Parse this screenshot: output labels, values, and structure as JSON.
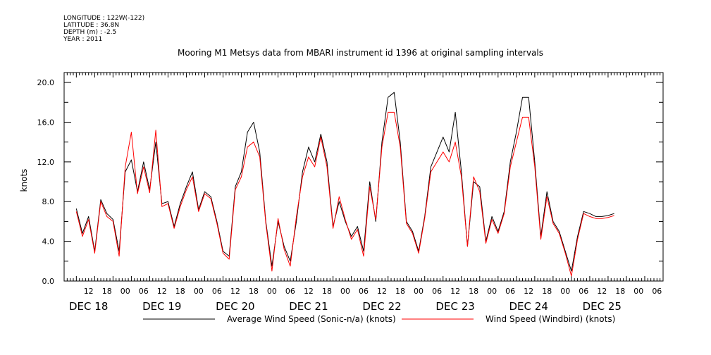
{
  "header": {
    "longitude": "LONGITUDE : 122W(-122)",
    "latitude": "LATITUDE : 36.8N",
    "depth": "DEPTH (m) : -2.5",
    "year": "YEAR : 2011"
  },
  "chart_data": {
    "type": "line",
    "title": "Mooring M1 Metsys data from MBARI instrument id 1396 at original sampling intervals",
    "ylabel": "knots",
    "ylim": [
      0,
      21
    ],
    "yticks": [
      "0.0",
      "4.0",
      "8.0",
      "12.0",
      "16.0",
      "20.0"
    ],
    "x_start_hour_of_day": 8,
    "x_hours": 176,
    "hour_tick_labels": [
      {
        "h": 4,
        "label": "12"
      },
      {
        "h": 10,
        "label": "18"
      },
      {
        "h": 16,
        "label": "00"
      },
      {
        "h": 22,
        "label": "06"
      },
      {
        "h": 28,
        "label": "12"
      },
      {
        "h": 34,
        "label": "18"
      },
      {
        "h": 40,
        "label": "00"
      },
      {
        "h": 46,
        "label": "06"
      },
      {
        "h": 52,
        "label": "12"
      },
      {
        "h": 58,
        "label": "18"
      },
      {
        "h": 64,
        "label": "00"
      },
      {
        "h": 70,
        "label": "06"
      },
      {
        "h": 76,
        "label": "12"
      },
      {
        "h": 82,
        "label": "18"
      },
      {
        "h": 88,
        "label": "00"
      },
      {
        "h": 94,
        "label": "06"
      },
      {
        "h": 100,
        "label": "12"
      },
      {
        "h": 106,
        "label": "18"
      },
      {
        "h": 112,
        "label": "00"
      },
      {
        "h": 118,
        "label": "06"
      },
      {
        "h": 124,
        "label": "12"
      },
      {
        "h": 130,
        "label": "18"
      },
      {
        "h": 136,
        "label": "00"
      },
      {
        "h": 142,
        "label": "06"
      },
      {
        "h": 148,
        "label": "12"
      },
      {
        "h": 154,
        "label": "18"
      },
      {
        "h": 160,
        "label": "00"
      },
      {
        "h": 166,
        "label": "06"
      },
      {
        "h": 172,
        "label": "12"
      },
      {
        "h": 178,
        "label": "18"
      },
      {
        "h": 184,
        "label": "00"
      },
      {
        "h": 190,
        "label": "06"
      }
    ],
    "day_labels": [
      {
        "h": 4,
        "label": "DEC 18"
      },
      {
        "h": 28,
        "label": "DEC 19"
      },
      {
        "h": 52,
        "label": "DEC 20"
      },
      {
        "h": 76,
        "label": "DEC 21"
      },
      {
        "h": 100,
        "label": "DEC 22"
      },
      {
        "h": 124,
        "label": "DEC 23"
      },
      {
        "h": 148,
        "label": "DEC 24"
      },
      {
        "h": 172,
        "label": "DEC 25"
      }
    ],
    "x": [
      0,
      2,
      4,
      6,
      8,
      10,
      12,
      14,
      16,
      18,
      20,
      22,
      24,
      26,
      28,
      30,
      32,
      34,
      36,
      38,
      40,
      42,
      44,
      46,
      48,
      50,
      52,
      54,
      56,
      58,
      60,
      62,
      64,
      66,
      68,
      70,
      72,
      74,
      76,
      78,
      80,
      82,
      84,
      86,
      88,
      90,
      92,
      94,
      96,
      98,
      100,
      102,
      104,
      106,
      108,
      110,
      112,
      114,
      116,
      118,
      120,
      122,
      124,
      126,
      128,
      130,
      132,
      134,
      136,
      138,
      140,
      142,
      144,
      146,
      148,
      150,
      152,
      154,
      156,
      158,
      160,
      162,
      164,
      166,
      168,
      170,
      172,
      174,
      176
    ],
    "series": [
      {
        "name": "Average Wind Speed (Sonic-n/a) (knots)",
        "color": "#000000",
        "values": [
          7.3,
          4.8,
          6.5,
          3.0,
          8.2,
          6.8,
          6.2,
          3.0,
          11.0,
          12.2,
          9.0,
          12.0,
          9.2,
          14.0,
          7.8,
          8.0,
          5.5,
          7.8,
          9.5,
          11.0,
          7.2,
          9.0,
          8.5,
          6.0,
          3.0,
          2.5,
          9.5,
          11.0,
          15.0,
          16.0,
          13.0,
          6.0,
          1.5,
          6.0,
          3.5,
          2.0,
          6.0,
          11.0,
          13.5,
          12.0,
          14.8,
          12.0,
          5.5,
          8.0,
          6.0,
          4.5,
          5.5,
          3.0,
          10.0,
          6.0,
          14.0,
          18.5,
          19.0,
          14.0,
          6.0,
          5.0,
          3.0,
          6.5,
          11.5,
          13.0,
          14.5,
          13.0,
          17.0,
          11.0,
          3.5,
          10.0,
          9.5,
          4.0,
          6.5,
          5.0,
          7.0,
          12.0,
          15.0,
          18.5,
          18.5,
          12.0,
          4.5,
          9.0,
          6.0,
          5.0,
          3.0,
          1.0,
          4.5,
          7.0,
          6.8,
          6.5,
          6.5,
          6.6,
          6.8
        ]
      },
      {
        "name": "Wind Speed (Windbird) (knots)",
        "color": "#ff0000",
        "values": [
          7.0,
          4.5,
          6.2,
          2.8,
          8.0,
          6.5,
          6.0,
          2.5,
          11.5,
          15.0,
          8.8,
          11.5,
          8.9,
          15.2,
          7.5,
          7.8,
          5.3,
          7.5,
          9.2,
          10.5,
          7.0,
          8.8,
          8.3,
          5.8,
          2.8,
          2.2,
          9.2,
          10.5,
          13.5,
          14.0,
          12.5,
          5.8,
          1.0,
          6.3,
          3.2,
          1.5,
          6.5,
          10.5,
          12.5,
          11.5,
          14.5,
          11.5,
          5.3,
          8.5,
          6.2,
          4.2,
          5.2,
          2.5,
          9.5,
          6.2,
          13.5,
          17.0,
          17.0,
          13.5,
          5.8,
          4.8,
          2.8,
          6.3,
          11.0,
          12.0,
          13.0,
          12.0,
          14.0,
          10.5,
          3.5,
          10.5,
          9.0,
          3.8,
          6.2,
          4.8,
          6.8,
          11.5,
          14.0,
          16.5,
          16.5,
          11.5,
          4.2,
          8.5,
          5.8,
          4.8,
          2.8,
          0.5,
          4.2,
          6.8,
          6.5,
          6.3,
          6.3,
          6.4,
          6.6
        ]
      }
    ]
  }
}
